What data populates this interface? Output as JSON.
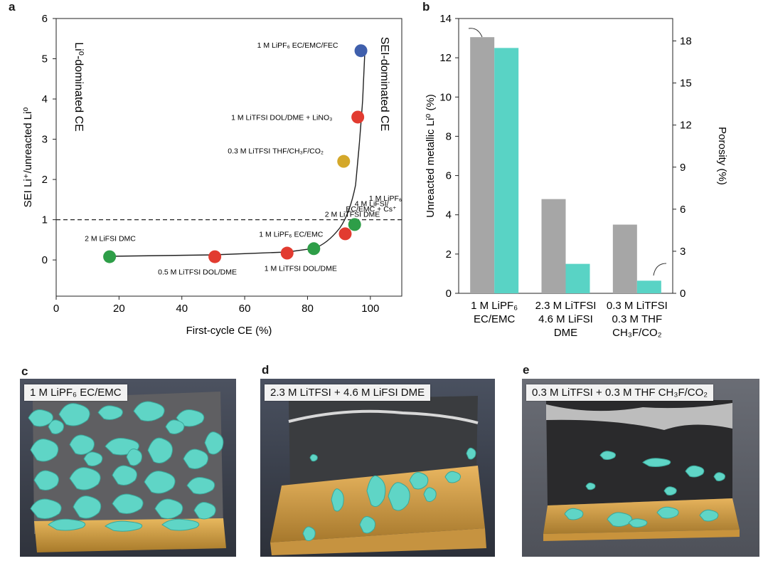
{
  "panels": {
    "a": "a",
    "b": "b",
    "c": "c",
    "d": "d",
    "e": "e"
  },
  "chart_data": [
    {
      "type": "scatter",
      "xlabel": "First-cycle CE (%)",
      "ylabel": "SEI Li⁺/unreacted Li⁰",
      "xlim": [
        0,
        110
      ],
      "ylim": [
        -0.9,
        6
      ],
      "xticks": [
        "0",
        "20",
        "40",
        "60",
        "80",
        "100"
      ],
      "yticks": [
        "0",
        "1",
        "2",
        "3",
        "4",
        "5",
        "6"
      ],
      "threshold_line": 1,
      "region_left": "Li⁰-dominated CE",
      "region_right": "SEI-dominated CE",
      "colors": {
        "green": "#2e9e48",
        "red": "#e23b30",
        "gold": "#d4a82a",
        "blue": "#3f5fac"
      },
      "points": [
        {
          "x": 17,
          "y": 0.08,
          "color": "green",
          "label": "2 M LiFSI DMC"
        },
        {
          "x": 50.5,
          "y": 0.08,
          "color": "red",
          "label": "0.5 M LiTFSI DOL/DME"
        },
        {
          "x": 73.5,
          "y": 0.17,
          "color": "red",
          "label": "1 M LiTFSI DOL/DME"
        },
        {
          "x": 82,
          "y": 0.28,
          "color": "green",
          "label": "1 M LiPF₆ EC/EMC"
        },
        {
          "x": 92,
          "y": 0.65,
          "color": "red",
          "label": ""
        },
        {
          "x": 95,
          "y": 0.88,
          "color": "green",
          "label": "4 M LiFSI/ 2 M LiTFSI DME"
        },
        {
          "x": 91.5,
          "y": 2.45,
          "color": "gold",
          "label": "0.3 M LiTFSI THF/CH₃F/CO₂"
        },
        {
          "x": 96,
          "y": 3.55,
          "color": "red",
          "label": "1 M LiTFSI DOL/DME + LiNO₃"
        },
        {
          "x": 97,
          "y": 5.2,
          "color": "blue",
          "label": "1 M LiPF₆ EC/EMC/FEC"
        }
      ],
      "annotations": [
        "1 M LiPF₆",
        "EC/EMC + Cs⁺"
      ]
    },
    {
      "type": "bar",
      "categories": [
        [
          "1 M LiPF₆",
          "EC/EMC"
        ],
        [
          "2.3 M LiTFSI",
          "4.6 M LiFSI",
          "DME"
        ],
        [
          "0.3 M LiTFSI",
          "0.3 M THF",
          "CH₃F/CO₂"
        ]
      ],
      "ylabel_left": "Unreacted metallic Li⁰ (%)",
      "ylabel_right": "Porosity (%)",
      "ylim_left": [
        0,
        14
      ],
      "ylim_right": [
        0,
        19.6
      ],
      "yticks_left": [
        "0",
        "2",
        "4",
        "6",
        "8",
        "10",
        "12",
        "14"
      ],
      "yticks_right": [
        "0",
        "3",
        "6",
        "9",
        "12",
        "15",
        "18"
      ],
      "series": [
        {
          "axis": "left",
          "color": "#a6a6a6",
          "values": [
            13.05,
            4.8,
            3.5
          ]
        },
        {
          "axis": "right",
          "color": "#59d3c5",
          "values": [
            17.5,
            2.1,
            0.9
          ]
        }
      ]
    }
  ],
  "images": {
    "c": {
      "label": "1 M LiPF₆ EC/EMC"
    },
    "d": {
      "label": "2.3 M LiTFSI + 4.6 M LiFSI DME"
    },
    "e": {
      "label": "0.3 M LiTFSI + 0.3 M THF CH₃F/CO₂"
    }
  }
}
